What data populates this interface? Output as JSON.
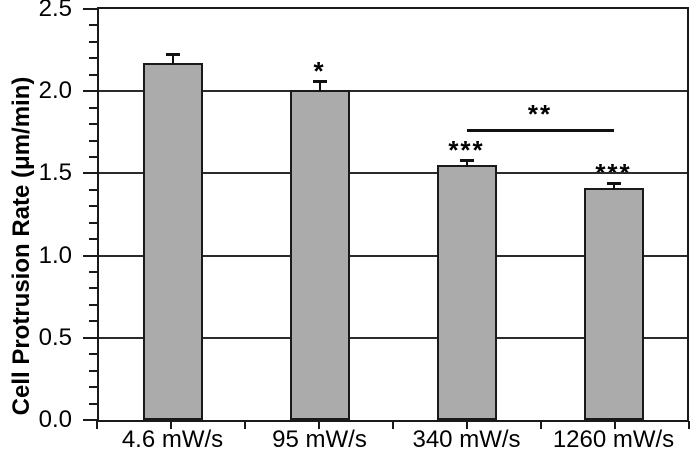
{
  "chart_data": {
    "type": "bar",
    "title": "",
    "xlabel": "",
    "ylabel": "Cell Protrusion Rate (μm/min)",
    "categories": [
      "4.6 mW/s",
      "95 mW/s",
      "340 mW/s",
      "1260 mW/s"
    ],
    "values": [
      2.17,
      2.01,
      1.55,
      1.41
    ],
    "errors_upper": [
      0.06,
      0.06,
      0.04,
      0.04
    ],
    "ylim": [
      0,
      2.5
    ],
    "y_major_step": 0.5,
    "y_minor_step": 0.1,
    "y_tick_labels": [
      "0.0",
      "0.5",
      "1.0",
      "1.5",
      "2.0",
      "2.5"
    ],
    "grid": "horizontal-major",
    "legend": "none",
    "frame": "full-box",
    "bar_fill_color": "#ababab",
    "bar_border_color": "#1a1a1a",
    "significance": {
      "bar_annotations": [
        {
          "bar": 1,
          "label": "*"
        },
        {
          "bar": 2,
          "label": "***"
        },
        {
          "bar": 3,
          "label": "***"
        }
      ],
      "bracket": {
        "from_bar": 2,
        "to_bar": 3,
        "y_value": 1.77,
        "label": "**"
      }
    }
  }
}
